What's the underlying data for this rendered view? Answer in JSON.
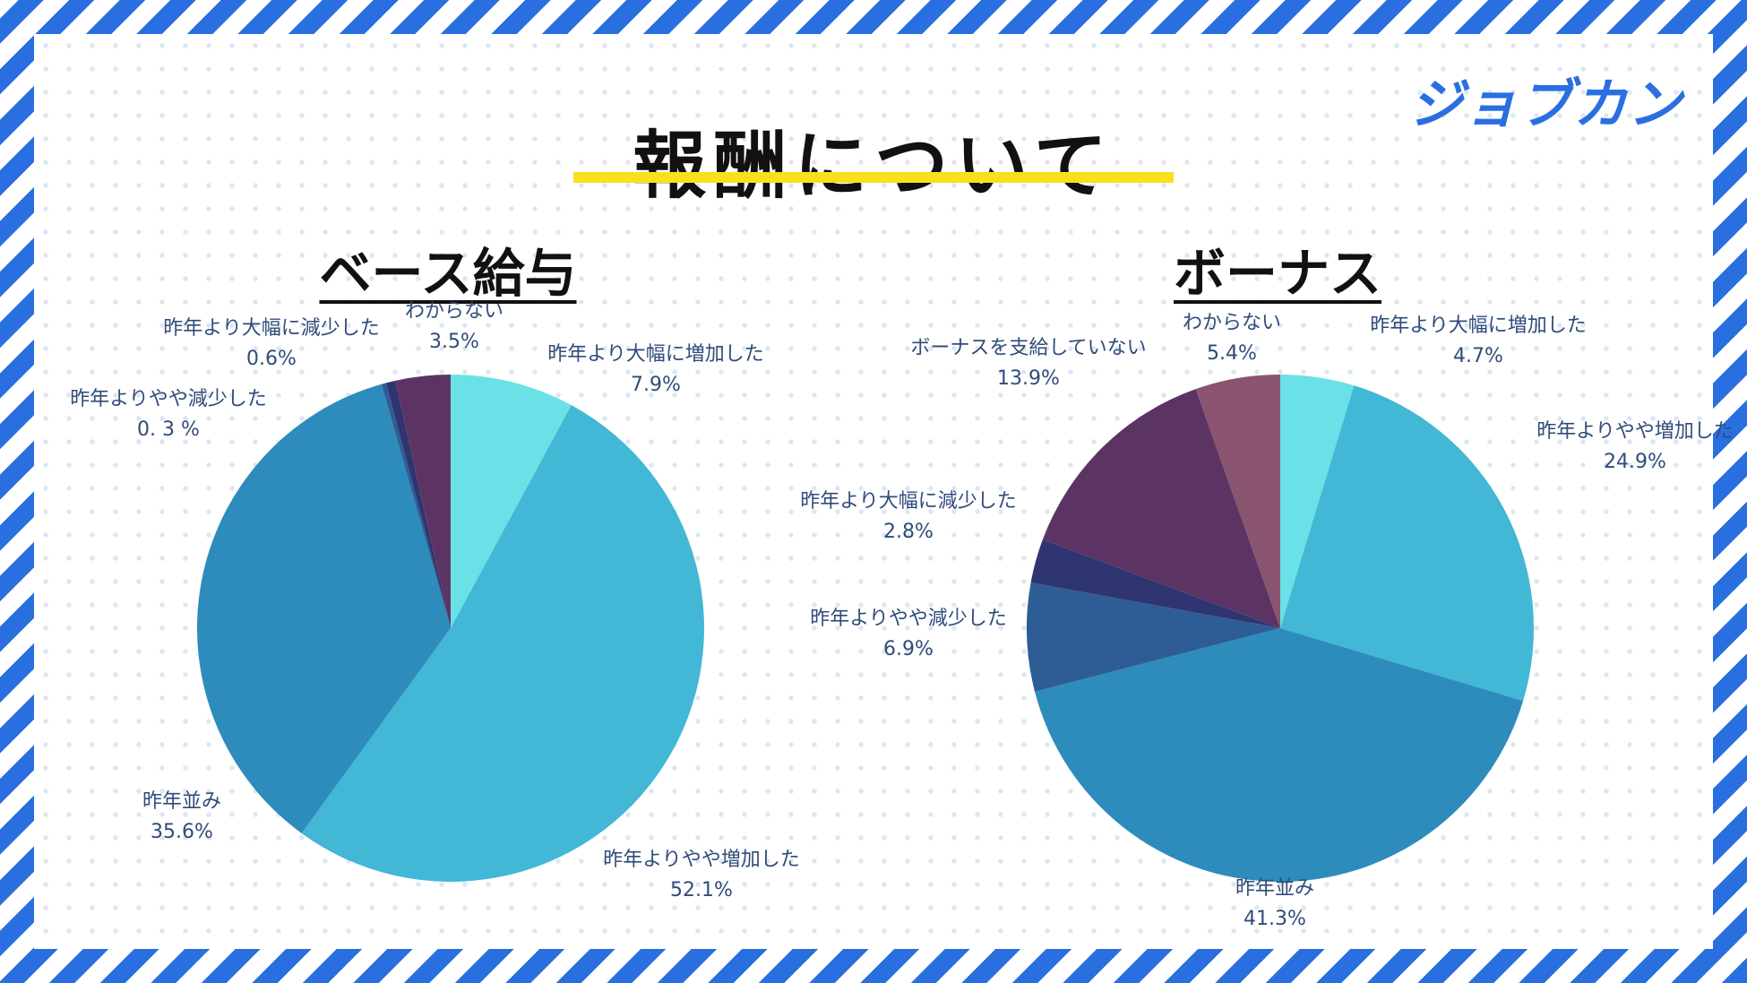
{
  "page": {
    "title": "報酬について",
    "logo": "ジョブカン"
  },
  "chart_data": [
    {
      "type": "pie",
      "title": "ベース給与",
      "slices": [
        {
          "label": "昨年より大幅に増加した",
          "value": 7.9,
          "display": "7.9%",
          "color": "#6ae1e6"
        },
        {
          "label": "昨年よりやや増加した",
          "value": 52.1,
          "display": "52.1%",
          "color": "#42b7d6"
        },
        {
          "label": "昨年並み",
          "value": 35.6,
          "display": "35.6%",
          "color": "#2d8cbb"
        },
        {
          "label": "昨年よりやや減少した",
          "value": 0.3,
          "display": "0. 3 %",
          "color": "#2d5d94"
        },
        {
          "label": "昨年より大幅に減少した",
          "value": 0.6,
          "display": "0.6%",
          "color": "#2f3570"
        },
        {
          "label": "わからない",
          "value": 3.5,
          "display": "3.5%",
          "color": "#5c3464"
        }
      ]
    },
    {
      "type": "pie",
      "title": "ボーナス",
      "slices": [
        {
          "label": "昨年より大幅に増加した",
          "value": 4.7,
          "display": "4.7%",
          "color": "#6ae1e6"
        },
        {
          "label": "昨年よりやや増加した",
          "value": 24.9,
          "display": "24.9%",
          "color": "#42b7d6"
        },
        {
          "label": "昨年並み",
          "value": 41.3,
          "display": "41.3%",
          "color": "#2d8cbb"
        },
        {
          "label": "昨年よりやや減少した",
          "value": 6.9,
          "display": "6.9%",
          "color": "#2d5d94"
        },
        {
          "label": "昨年より大幅に減少した",
          "value": 2.8,
          "display": "2.8%",
          "color": "#2f3570"
        },
        {
          "label": "ボーナスを支給していない",
          "value": 13.9,
          "display": "13.9%",
          "color": "#5c3464"
        },
        {
          "label": "わからない",
          "value": 5.4,
          "display": "5.4%",
          "color": "#8a5470"
        }
      ]
    }
  ]
}
